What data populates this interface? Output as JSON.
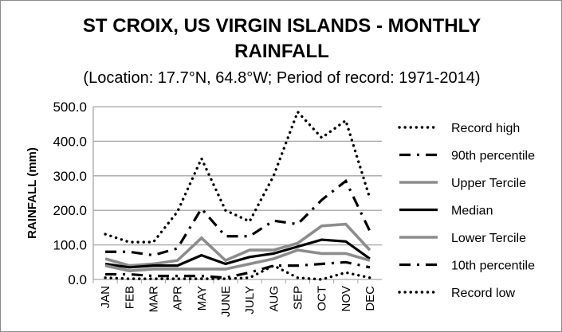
{
  "chart_data": {
    "type": "line",
    "title_line1": "ST CROIX, US VIRGIN ISLANDS - MONTHLY",
    "title_line2": "RAINFALL",
    "subtitle": "(Location: 17.7°N, 64.8°W; Period of record: 1971-2014)",
    "xlabel": "",
    "ylabel": "RAINFALL (mm)",
    "ylim": [
      0,
      500
    ],
    "yticks": [
      "0.0",
      "100.0",
      "200.0",
      "300.0",
      "400.0",
      "500.0"
    ],
    "categories": [
      "JAN",
      "FEB",
      "MAR",
      "APR",
      "MAY",
      "JUNE",
      "JULY",
      "AUG",
      "SEP",
      "OCT",
      "NOV",
      "DEC"
    ],
    "legend_position": "right",
    "grid": true,
    "series": [
      {
        "name": "Record high",
        "style": "dotted",
        "color": "#000000",
        "values": [
          131,
          108,
          108,
          196,
          350,
          200,
          168,
          300,
          485,
          410,
          460,
          235
        ]
      },
      {
        "name": "90th percentile",
        "style": "dashdot",
        "color": "#000000",
        "values": [
          80,
          80,
          70,
          90,
          205,
          125,
          125,
          170,
          160,
          230,
          285,
          140
        ]
      },
      {
        "name": "Upper Tercile",
        "style": "solid",
        "color": "#8c8c8c",
        "values": [
          60,
          40,
          45,
          55,
          120,
          55,
          85,
          85,
          105,
          155,
          160,
          85
        ]
      },
      {
        "name": "Median",
        "style": "solid",
        "color": "#000000",
        "values": [
          45,
          35,
          40,
          40,
          70,
          45,
          65,
          75,
          95,
          115,
          110,
          60
        ]
      },
      {
        "name": "Lower Tercile",
        "style": "solid",
        "color": "#8c8c8c",
        "values": [
          40,
          25,
          30,
          30,
          30,
          30,
          45,
          60,
          85,
          75,
          75,
          55
        ]
      },
      {
        "name": "10th percentile",
        "style": "dashdot",
        "color": "#000000",
        "values": [
          15,
          15,
          10,
          10,
          10,
          5,
          20,
          40,
          40,
          45,
          50,
          35
        ]
      },
      {
        "name": "Record low",
        "style": "dotted",
        "color": "#000000",
        "values": [
          5,
          2,
          2,
          2,
          2,
          2,
          5,
          40,
          5,
          0,
          20,
          5
        ]
      }
    ]
  }
}
